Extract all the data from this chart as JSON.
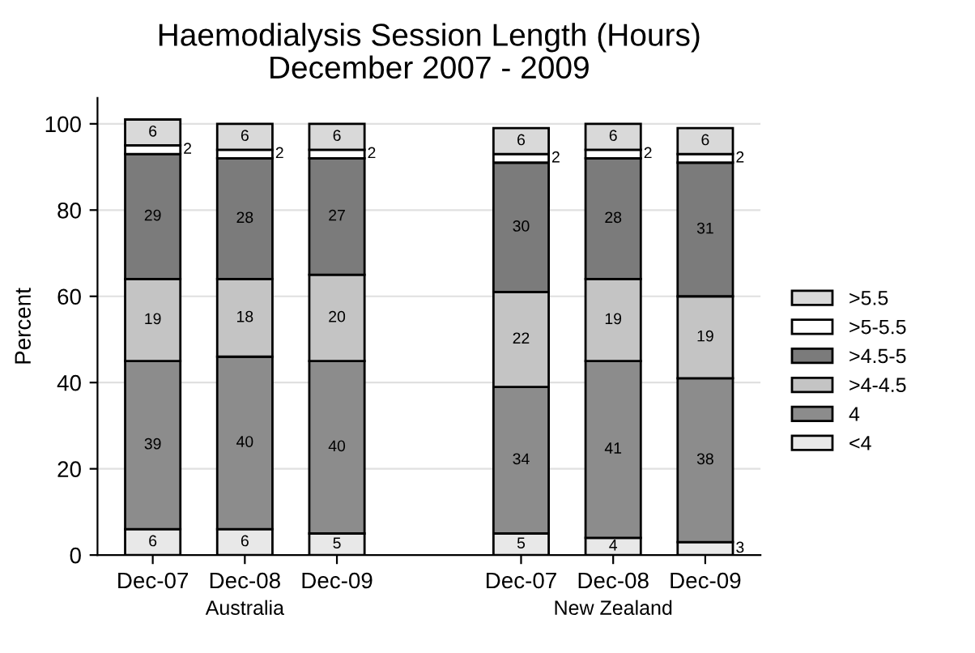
{
  "chart_data": {
    "type": "bar",
    "stacked": true,
    "title": "Haemodialysis Session Length (Hours)",
    "subtitle": "December 2007 - 2009",
    "ylabel": "Percent",
    "categories": [
      "Dec-07",
      "Dec-08",
      "Dec-09",
      null,
      "Dec-07",
      "Dec-08",
      "Dec-09"
    ],
    "series": [
      {
        "name": "<4",
        "color": "#e8e8e8",
        "values": [
          6,
          6,
          5,
          null,
          5,
          4,
          3
        ]
      },
      {
        "name": "4",
        "color": "#8c8c8c",
        "values": [
          39,
          40,
          40,
          null,
          34,
          41,
          38
        ]
      },
      {
        "name": ">4-4.5",
        "color": "#c4c4c4",
        "values": [
          19,
          18,
          20,
          null,
          22,
          19,
          19
        ]
      },
      {
        "name": ">4.5-5",
        "color": "#7b7b7b",
        "values": [
          29,
          28,
          27,
          null,
          30,
          28,
          31
        ]
      },
      {
        "name": ">5-5.5",
        "color": "#ffffff",
        "values": [
          2,
          2,
          2,
          null,
          2,
          2,
          2
        ]
      },
      {
        "name": ">5.5",
        "color": "#d9d9d9",
        "values": [
          6,
          6,
          6,
          null,
          6,
          6,
          6
        ]
      }
    ],
    "annotations": [
      "Australia",
      "New Zealand"
    ],
    "ylim": [
      0,
      106
    ],
    "yticks": [
      0,
      20,
      40,
      60,
      80,
      100
    ],
    "grid": "y",
    "legend": "right",
    "data_labels": true
  }
}
